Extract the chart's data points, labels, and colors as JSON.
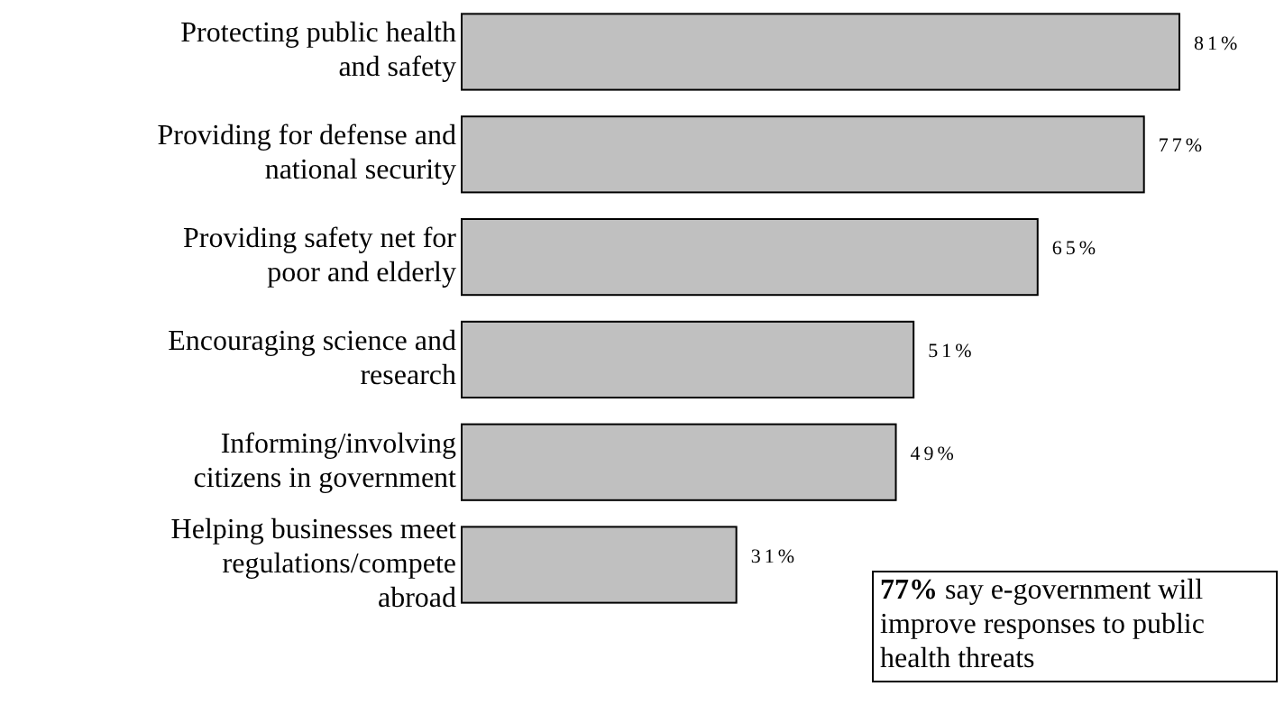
{
  "chart_data": {
    "type": "bar",
    "orientation": "horizontal",
    "categories": [
      "Protecting public health and safety",
      "Providing for defense and national security",
      "Providing safety net for poor and elderly",
      "Encouraging science and research",
      "Informing/involving citizens in government",
      "Helping businesses meet regulations/compete abroad"
    ],
    "values": [
      81,
      77,
      65,
      51,
      49,
      31
    ],
    "value_labels": [
      "81%",
      "77%",
      "65%",
      "51%",
      "49%",
      "31%"
    ],
    "color": "#c0c0c0",
    "annotations": [
      "77% say e-government will improve responses to public health threats"
    ]
  }
}
